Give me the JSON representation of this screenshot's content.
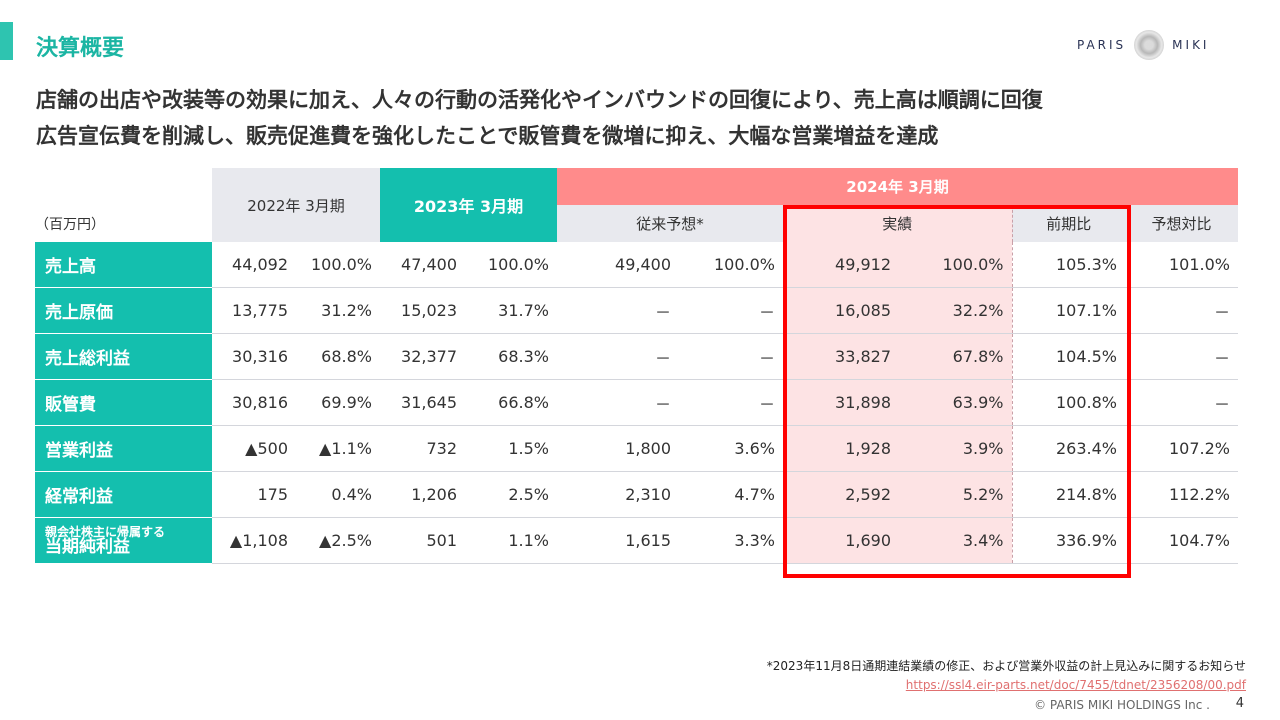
{
  "header": {
    "title": "決算概要",
    "logo_left": "PARIS",
    "logo_right": "MIKI"
  },
  "lead": [
    "店舗の出店や改装等の効果に加え、人々の行動の活発化やインバウンドの回復により、売上高は順調に回復",
    "広告宣伝費を削減し、販売促進費を強化したことで販管費を微増に抑え、大幅な営業増益を達成"
  ],
  "table": {
    "unit": "（百万円）",
    "col_2022": "2022年 3月期",
    "col_2023": "2023年 3月期",
    "col_2024": "2024年 3月期",
    "sub_forecast": "従来予想*",
    "sub_actual": "実績",
    "sub_yoy": "前期比",
    "sub_vs_forecast": "予想対比",
    "rows": [
      {
        "label": "売上高",
        "v22": "44,092",
        "p22": "100.0%",
        "v23": "47,400",
        "p23": "100.0%",
        "fv": "49,400",
        "fp": "100.0%",
        "av": "49,912",
        "ap": "100.0%",
        "yoy": "105.3%",
        "vf": "101.0%"
      },
      {
        "label": "売上原価",
        "v22": "13,775",
        "p22": "31.2%",
        "v23": "15,023",
        "p23": "31.7%",
        "fv": "－",
        "fp": "－",
        "av": "16,085",
        "ap": "32.2%",
        "yoy": "107.1%",
        "vf": "－"
      },
      {
        "label": "売上総利益",
        "v22": "30,316",
        "p22": "68.8%",
        "v23": "32,377",
        "p23": "68.3%",
        "fv": "－",
        "fp": "－",
        "av": "33,827",
        "ap": "67.8%",
        "yoy": "104.5%",
        "vf": "－"
      },
      {
        "label": "販管費",
        "v22": "30,816",
        "p22": "69.9%",
        "v23": "31,645",
        "p23": "66.8%",
        "fv": "－",
        "fp": "－",
        "av": "31,898",
        "ap": "63.9%",
        "yoy": "100.8%",
        "vf": "－"
      },
      {
        "label": "営業利益",
        "v22": "▲500",
        "p22": "▲1.1%",
        "v23": "732",
        "p23": "1.5%",
        "fv": "1,800",
        "fp": "3.6%",
        "av": "1,928",
        "ap": "3.9%",
        "yoy": "263.4%",
        "vf": "107.2%"
      },
      {
        "label": "経常利益",
        "v22": "175",
        "p22": "0.4%",
        "v23": "1,206",
        "p23": "2.5%",
        "fv": "2,310",
        "fp": "4.7%",
        "av": "2,592",
        "ap": "5.2%",
        "yoy": "214.8%",
        "vf": "112.2%"
      },
      {
        "label_small": "親会社株主に帰属する",
        "label": "当期純利益",
        "v22": "▲1,108",
        "p22": "▲2.5%",
        "v23": "501",
        "p23": "1.1%",
        "fv": "1,615",
        "fp": "3.3%",
        "av": "1,690",
        "ap": "3.4%",
        "yoy": "336.9%",
        "vf": "104.7%"
      }
    ]
  },
  "footer": {
    "note": "*2023年11月8日通期連結業績の修正、および営業外収益の計上見込みに関するお知らせ",
    "link": "https://ssl4.eir-parts.net/doc/7455/tdnet/2356208/00.pdf",
    "copyright": "© PARIS MIKI HOLDINGS Inc .",
    "page": "4"
  },
  "colors": {
    "teal": "#14bfae",
    "pink_header": "#ff8b8b",
    "highlight": "#ff0000"
  }
}
